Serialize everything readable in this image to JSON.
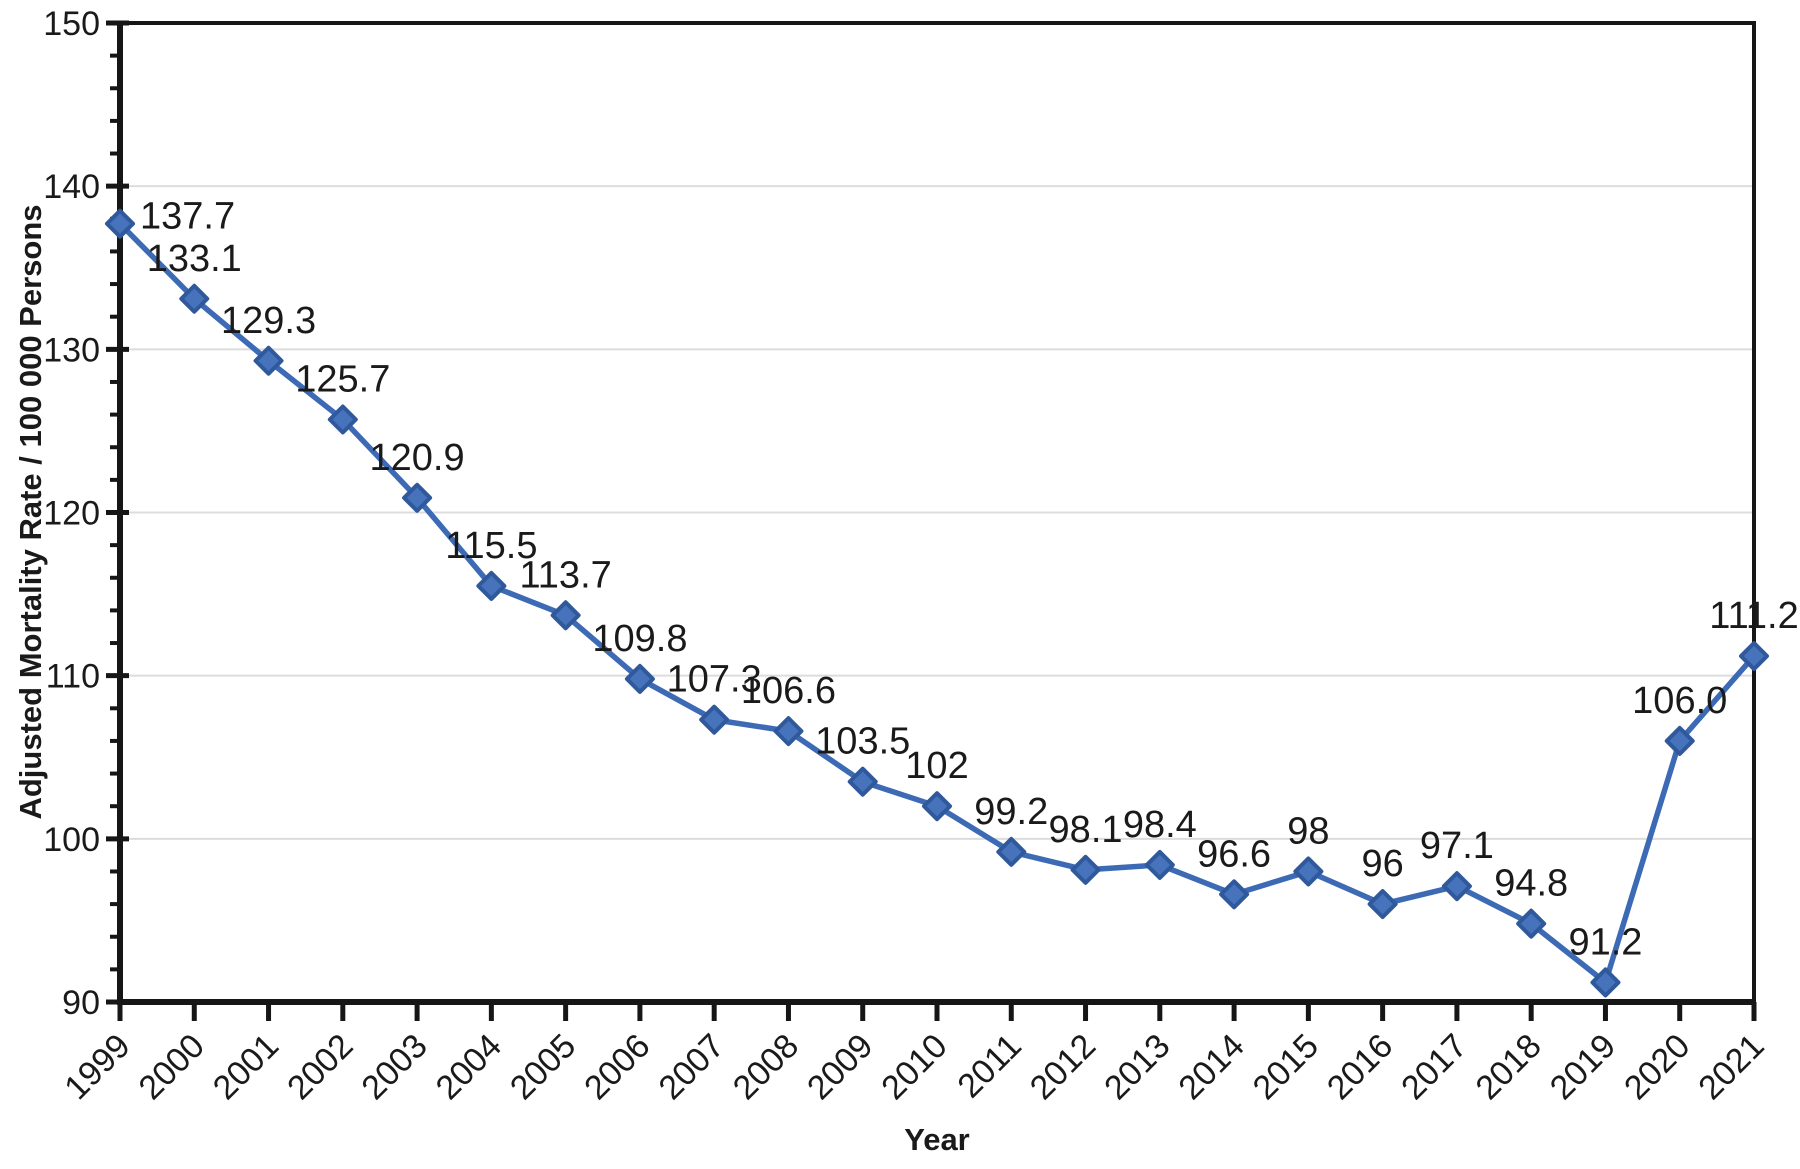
{
  "chart_data": {
    "type": "line",
    "title": "",
    "xlabel": "Year",
    "ylabel": "Adjusted Mortality Rate / 100 000 Persons",
    "x": [
      "1999",
      "2000",
      "2001",
      "2002",
      "2003",
      "2004",
      "2005",
      "2006",
      "2007",
      "2008",
      "2009",
      "2010",
      "2011",
      "2012",
      "2013",
      "2014",
      "2015",
      "2016",
      "2017",
      "2018",
      "2019",
      "2020",
      "2021"
    ],
    "values": [
      137.7,
      133.1,
      129.3,
      125.7,
      120.9,
      115.5,
      113.7,
      109.8,
      107.3,
      106.6,
      103.5,
      102,
      99.2,
      98.1,
      98.4,
      96.6,
      98,
      96,
      97.1,
      94.8,
      91.2,
      106.0,
      111.2
    ],
    "point_labels": [
      "137.7",
      "133.1",
      "129.3",
      "125.7",
      "120.9",
      "115.5",
      "113.7",
      "109.8",
      "107.3",
      "106.6",
      "103.5",
      "102",
      "99.2",
      "98.1",
      "98.4",
      "96.6",
      "98",
      "96",
      "97.1",
      "94.8",
      "91.2",
      "106.0",
      "111.2"
    ],
    "ylim": [
      90,
      150
    ],
    "ytick_step": 10,
    "yminor_step": 2,
    "ytick_labels": [
      "90",
      "100",
      "110",
      "120",
      "130",
      "140",
      "150"
    ],
    "grid": "horizontal-major",
    "legend": "none",
    "colors": {
      "line": "#3c6ab5",
      "marker": "#4673bb",
      "marker_border": "#30599c",
      "grid": "#dcdcdc",
      "axis": "#161616",
      "text": "#1a1a1a"
    }
  }
}
